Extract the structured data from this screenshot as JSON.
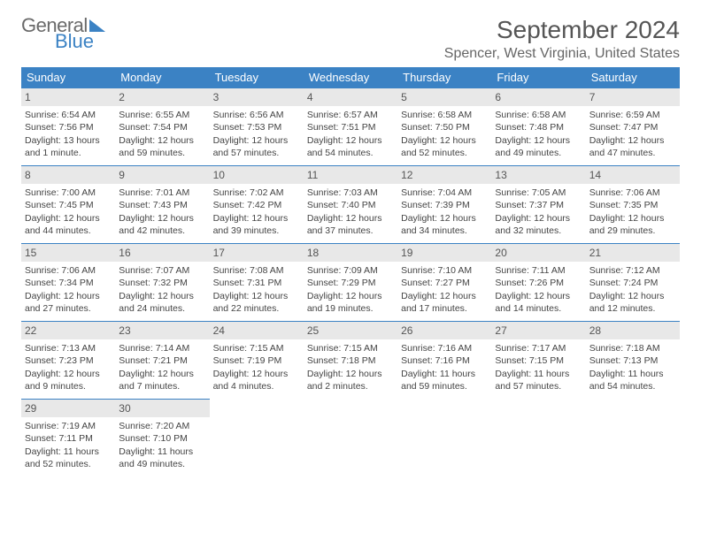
{
  "logo": {
    "line1": "General",
    "line2": "Blue"
  },
  "header": {
    "month_title": "September 2024",
    "location": "Spencer, West Virginia, United States"
  },
  "style": {
    "accent": "#3b82c4",
    "header_bg": "#3b82c4",
    "daynum_bg": "#e8e8e8",
    "text": "#444"
  },
  "weekdays": [
    "Sunday",
    "Monday",
    "Tuesday",
    "Wednesday",
    "Thursday",
    "Friday",
    "Saturday"
  ],
  "days": [
    {
      "n": "1",
      "sr": "Sunrise: 6:54 AM",
      "ss": "Sunset: 7:56 PM",
      "dl": "Daylight: 13 hours and 1 minute."
    },
    {
      "n": "2",
      "sr": "Sunrise: 6:55 AM",
      "ss": "Sunset: 7:54 PM",
      "dl": "Daylight: 12 hours and 59 minutes."
    },
    {
      "n": "3",
      "sr": "Sunrise: 6:56 AM",
      "ss": "Sunset: 7:53 PM",
      "dl": "Daylight: 12 hours and 57 minutes."
    },
    {
      "n": "4",
      "sr": "Sunrise: 6:57 AM",
      "ss": "Sunset: 7:51 PM",
      "dl": "Daylight: 12 hours and 54 minutes."
    },
    {
      "n": "5",
      "sr": "Sunrise: 6:58 AM",
      "ss": "Sunset: 7:50 PM",
      "dl": "Daylight: 12 hours and 52 minutes."
    },
    {
      "n": "6",
      "sr": "Sunrise: 6:58 AM",
      "ss": "Sunset: 7:48 PM",
      "dl": "Daylight: 12 hours and 49 minutes."
    },
    {
      "n": "7",
      "sr": "Sunrise: 6:59 AM",
      "ss": "Sunset: 7:47 PM",
      "dl": "Daylight: 12 hours and 47 minutes."
    },
    {
      "n": "8",
      "sr": "Sunrise: 7:00 AM",
      "ss": "Sunset: 7:45 PM",
      "dl": "Daylight: 12 hours and 44 minutes."
    },
    {
      "n": "9",
      "sr": "Sunrise: 7:01 AM",
      "ss": "Sunset: 7:43 PM",
      "dl": "Daylight: 12 hours and 42 minutes."
    },
    {
      "n": "10",
      "sr": "Sunrise: 7:02 AM",
      "ss": "Sunset: 7:42 PM",
      "dl": "Daylight: 12 hours and 39 minutes."
    },
    {
      "n": "11",
      "sr": "Sunrise: 7:03 AM",
      "ss": "Sunset: 7:40 PM",
      "dl": "Daylight: 12 hours and 37 minutes."
    },
    {
      "n": "12",
      "sr": "Sunrise: 7:04 AM",
      "ss": "Sunset: 7:39 PM",
      "dl": "Daylight: 12 hours and 34 minutes."
    },
    {
      "n": "13",
      "sr": "Sunrise: 7:05 AM",
      "ss": "Sunset: 7:37 PM",
      "dl": "Daylight: 12 hours and 32 minutes."
    },
    {
      "n": "14",
      "sr": "Sunrise: 7:06 AM",
      "ss": "Sunset: 7:35 PM",
      "dl": "Daylight: 12 hours and 29 minutes."
    },
    {
      "n": "15",
      "sr": "Sunrise: 7:06 AM",
      "ss": "Sunset: 7:34 PM",
      "dl": "Daylight: 12 hours and 27 minutes."
    },
    {
      "n": "16",
      "sr": "Sunrise: 7:07 AM",
      "ss": "Sunset: 7:32 PM",
      "dl": "Daylight: 12 hours and 24 minutes."
    },
    {
      "n": "17",
      "sr": "Sunrise: 7:08 AM",
      "ss": "Sunset: 7:31 PM",
      "dl": "Daylight: 12 hours and 22 minutes."
    },
    {
      "n": "18",
      "sr": "Sunrise: 7:09 AM",
      "ss": "Sunset: 7:29 PM",
      "dl": "Daylight: 12 hours and 19 minutes."
    },
    {
      "n": "19",
      "sr": "Sunrise: 7:10 AM",
      "ss": "Sunset: 7:27 PM",
      "dl": "Daylight: 12 hours and 17 minutes."
    },
    {
      "n": "20",
      "sr": "Sunrise: 7:11 AM",
      "ss": "Sunset: 7:26 PM",
      "dl": "Daylight: 12 hours and 14 minutes."
    },
    {
      "n": "21",
      "sr": "Sunrise: 7:12 AM",
      "ss": "Sunset: 7:24 PM",
      "dl": "Daylight: 12 hours and 12 minutes."
    },
    {
      "n": "22",
      "sr": "Sunrise: 7:13 AM",
      "ss": "Sunset: 7:23 PM",
      "dl": "Daylight: 12 hours and 9 minutes."
    },
    {
      "n": "23",
      "sr": "Sunrise: 7:14 AM",
      "ss": "Sunset: 7:21 PM",
      "dl": "Daylight: 12 hours and 7 minutes."
    },
    {
      "n": "24",
      "sr": "Sunrise: 7:15 AM",
      "ss": "Sunset: 7:19 PM",
      "dl": "Daylight: 12 hours and 4 minutes."
    },
    {
      "n": "25",
      "sr": "Sunrise: 7:15 AM",
      "ss": "Sunset: 7:18 PM",
      "dl": "Daylight: 12 hours and 2 minutes."
    },
    {
      "n": "26",
      "sr": "Sunrise: 7:16 AM",
      "ss": "Sunset: 7:16 PM",
      "dl": "Daylight: 11 hours and 59 minutes."
    },
    {
      "n": "27",
      "sr": "Sunrise: 7:17 AM",
      "ss": "Sunset: 7:15 PM",
      "dl": "Daylight: 11 hours and 57 minutes."
    },
    {
      "n": "28",
      "sr": "Sunrise: 7:18 AM",
      "ss": "Sunset: 7:13 PM",
      "dl": "Daylight: 11 hours and 54 minutes."
    },
    {
      "n": "29",
      "sr": "Sunrise: 7:19 AM",
      "ss": "Sunset: 7:11 PM",
      "dl": "Daylight: 11 hours and 52 minutes."
    },
    {
      "n": "30",
      "sr": "Sunrise: 7:20 AM",
      "ss": "Sunset: 7:10 PM",
      "dl": "Daylight: 11 hours and 49 minutes."
    }
  ]
}
